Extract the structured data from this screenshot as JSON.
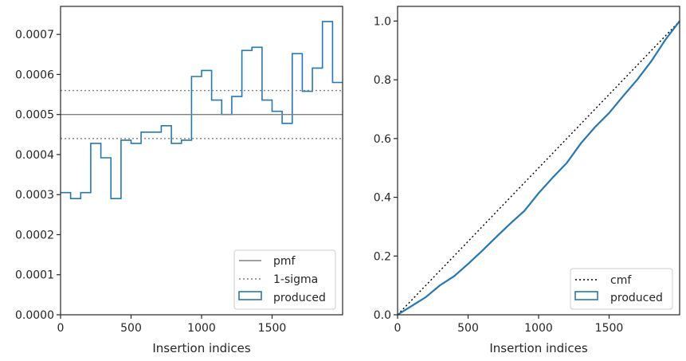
{
  "colors": {
    "hist": "#2678b2",
    "pmf": "#808080",
    "sigma": "#808080",
    "cmf": "#000000",
    "axes": "#262626"
  },
  "chart_data": [
    {
      "type": "step",
      "xlabel": "Insertion indices",
      "ylabel": "",
      "xlim": [
        0,
        2000
      ],
      "ylim": [
        0,
        0.00077
      ],
      "xticks": [
        0,
        500,
        1000,
        1500
      ],
      "xtick_labels": [
        "0",
        "500",
        "1000",
        "1500"
      ],
      "yticks": [
        0,
        0.0001,
        0.0002,
        0.0003,
        0.0004,
        0.0005,
        0.0006,
        0.0007
      ],
      "ytick_labels": [
        "0.0000",
        "0.0001",
        "0.0002",
        "0.0003",
        "0.0004",
        "0.0005",
        "0.0006",
        "0.0007"
      ],
      "bin_width": 71.4,
      "bin_starts": [
        0,
        71.4,
        142.9,
        214.3,
        285.7,
        357.1,
        428.6,
        500,
        571.4,
        642.9,
        714.3,
        785.7,
        857.1,
        928.6,
        1000,
        1071.4,
        1142.9,
        1214.3,
        1285.7,
        1357.1,
        1428.6,
        1500,
        1571.4,
        1642.9,
        1714.3,
        1785.7,
        1857.1,
        1928.6
      ],
      "values": [
        0.000305,
        0.00029,
        0.000305,
        0.000428,
        0.000392,
        0.00029,
        0.000436,
        0.000428,
        0.000456,
        0.000456,
        0.000472,
        0.000428,
        0.000436,
        0.000595,
        0.00061,
        0.000536,
        0.0005,
        0.000545,
        0.00066,
        0.000668,
        0.000536,
        0.000508,
        0.000478,
        0.000652,
        0.000558,
        0.000616,
        0.000732,
        0.00058
      ],
      "pmf": 0.0005,
      "sigma_band": [
        0.00044,
        0.00056
      ],
      "legend": {
        "position": "lower-right",
        "entries": [
          "pmf",
          "1-sigma",
          "produced"
        ]
      },
      "grid": false
    },
    {
      "type": "line",
      "xlabel": "Insertion indices",
      "ylabel": "",
      "xlim": [
        0,
        2000
      ],
      "ylim": [
        0,
        1.05
      ],
      "xticks": [
        0,
        500,
        1000,
        1500
      ],
      "xtick_labels": [
        "0",
        "500",
        "1000",
        "1500"
      ],
      "yticks": [
        0,
        0.2,
        0.4,
        0.6,
        0.8,
        1.0
      ],
      "ytick_labels": [
        "0.0",
        "0.2",
        "0.4",
        "0.6",
        "0.8",
        "1.0"
      ],
      "cmf": {
        "x": [
          0,
          2000
        ],
        "y": [
          0,
          1.0
        ]
      },
      "produced": {
        "x": [
          0,
          100,
          200,
          300,
          400,
          500,
          600,
          700,
          800,
          900,
          1000,
          1100,
          1200,
          1300,
          1400,
          1500,
          1600,
          1700,
          1800,
          1900,
          2000
        ],
        "y": [
          0.0,
          0.03,
          0.06,
          0.1,
          0.131,
          0.173,
          0.218,
          0.265,
          0.311,
          0.354,
          0.414,
          0.467,
          0.517,
          0.584,
          0.639,
          0.687,
          0.745,
          0.801,
          0.864,
          0.937,
          1.0
        ]
      },
      "legend": {
        "position": "lower-right",
        "entries": [
          "cmf",
          "produced"
        ]
      },
      "grid": false
    }
  ]
}
